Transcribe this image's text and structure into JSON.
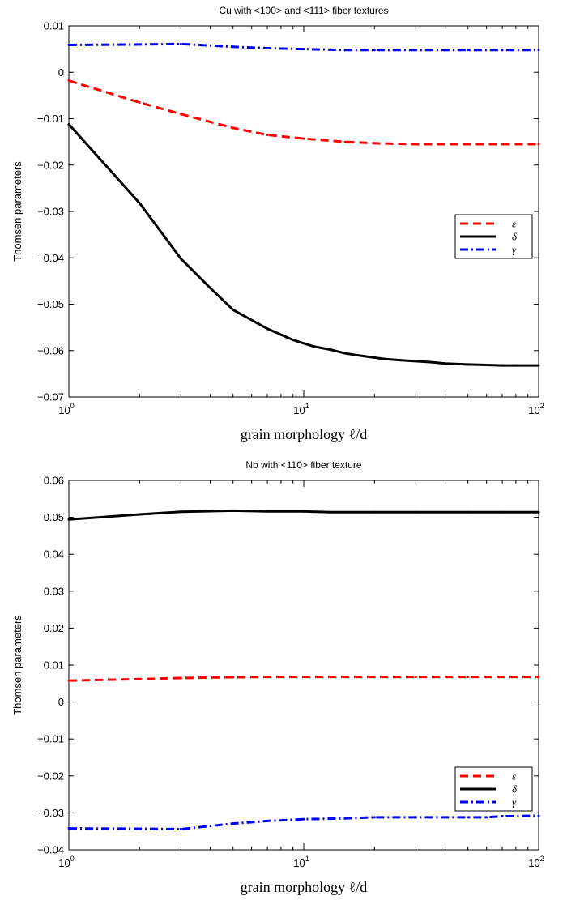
{
  "chart_data": [
    {
      "type": "line",
      "title": "Cu with <100> and <111> fiber textures",
      "xlabel": "grain morphology ℓ/d",
      "ylabel": "Thomsen parameters",
      "xscale": "log",
      "xlim": [
        1,
        100
      ],
      "ylim": [
        -0.07,
        0.01
      ],
      "xticks": [
        1,
        10,
        100
      ],
      "xtick_labels": [
        {
          "base": "10",
          "exp": "0"
        },
        {
          "base": "10",
          "exp": "1"
        },
        {
          "base": "10",
          "exp": "2"
        }
      ],
      "yticks": [
        -0.07,
        -0.06,
        -0.05,
        -0.04,
        -0.03,
        -0.02,
        -0.01,
        0,
        0.01
      ],
      "ytick_labels": [
        "−0.07",
        "−0.06",
        "−0.05",
        "−0.04",
        "−0.03",
        "−0.02",
        "−0.01",
        "0",
        "0.01"
      ],
      "grid": false,
      "legend_position": "right",
      "series": [
        {
          "name": "ε",
          "color": "#ff0000",
          "dash": "dashed",
          "x": [
            1,
            2,
            3,
            5,
            7,
            10,
            15,
            20,
            30,
            50,
            70,
            100
          ],
          "y": [
            -0.0018,
            -0.0065,
            -0.009,
            -0.012,
            -0.0135,
            -0.0143,
            -0.015,
            -0.0153,
            -0.0155,
            -0.0155,
            -0.0155,
            -0.0155
          ]
        },
        {
          "name": "δ",
          "color": "#000000",
          "dash": "solid",
          "x": [
            1,
            2,
            3,
            4,
            5,
            7,
            9,
            11,
            13,
            15,
            18,
            22,
            26,
            30,
            35,
            40,
            45,
            50,
            60,
            70,
            80,
            100
          ],
          "y": [
            -0.0112,
            -0.0282,
            -0.0402,
            -0.0465,
            -0.0512,
            -0.0553,
            -0.0577,
            -0.0591,
            -0.0598,
            -0.0606,
            -0.0612,
            -0.0618,
            -0.0621,
            -0.0623,
            -0.0625,
            -0.0628,
            -0.0629,
            -0.063,
            -0.0631,
            -0.0632,
            -0.0632,
            -0.0632
          ]
        },
        {
          "name": "γ",
          "color": "#0000ff",
          "dash": "dashdot",
          "x": [
            1,
            2,
            3,
            5,
            7,
            10,
            15,
            20,
            30,
            50,
            70,
            100
          ],
          "y": [
            0.0059,
            0.006,
            0.0061,
            0.0055,
            0.0052,
            0.005,
            0.0048,
            0.0048,
            0.0048,
            0.0048,
            0.0048,
            0.0048
          ]
        }
      ]
    },
    {
      "type": "line",
      "title": "Nb with <110> fiber texture",
      "xlabel": "grain morphology ℓ/d",
      "ylabel": "Thomsen parameters",
      "xscale": "log",
      "xlim": [
        1,
        100
      ],
      "ylim": [
        -0.04,
        0.06
      ],
      "xticks": [
        1,
        10,
        100
      ],
      "xtick_labels": [
        {
          "base": "10",
          "exp": "0"
        },
        {
          "base": "10",
          "exp": "1"
        },
        {
          "base": "10",
          "exp": "2"
        }
      ],
      "yticks": [
        -0.04,
        -0.03,
        -0.02,
        -0.01,
        0,
        0.01,
        0.02,
        0.03,
        0.04,
        0.05,
        0.06
      ],
      "ytick_labels": [
        "−0.04",
        "−0.03",
        "−0.02",
        "−0.01",
        "0",
        "0.01",
        "0.02",
        "0.03",
        "0.04",
        "0.05",
        "0.06"
      ],
      "grid": false,
      "legend_position": "lower right",
      "series": [
        {
          "name": "ε",
          "color": "#ff0000",
          "dash": "dashed",
          "x": [
            1,
            2,
            3,
            5,
            7,
            10,
            15,
            20,
            30,
            50,
            70,
            100
          ],
          "y": [
            0.0058,
            0.0062,
            0.0065,
            0.0067,
            0.0068,
            0.0068,
            0.0068,
            0.0068,
            0.0068,
            0.0068,
            0.0068,
            0.0068
          ]
        },
        {
          "name": "δ",
          "color": "#000000",
          "dash": "solid",
          "x": [
            1,
            2,
            3,
            5,
            7,
            10,
            13,
            20,
            30,
            50,
            70,
            100
          ],
          "y": [
            0.0494,
            0.0508,
            0.0515,
            0.0518,
            0.0516,
            0.0516,
            0.0514,
            0.0514,
            0.0514,
            0.0514,
            0.0514,
            0.0514
          ]
        },
        {
          "name": "γ",
          "color": "#0000ff",
          "dash": "dashdot",
          "x": [
            1,
            2,
            3,
            5,
            7,
            10,
            15,
            20,
            30,
            50,
            60,
            70,
            100
          ],
          "y": [
            -0.0342,
            -0.0343,
            -0.0344,
            -0.0329,
            -0.0322,
            -0.0317,
            -0.0315,
            -0.0312,
            -0.0312,
            -0.0312,
            -0.0312,
            -0.0309,
            -0.0308
          ]
        }
      ]
    }
  ]
}
